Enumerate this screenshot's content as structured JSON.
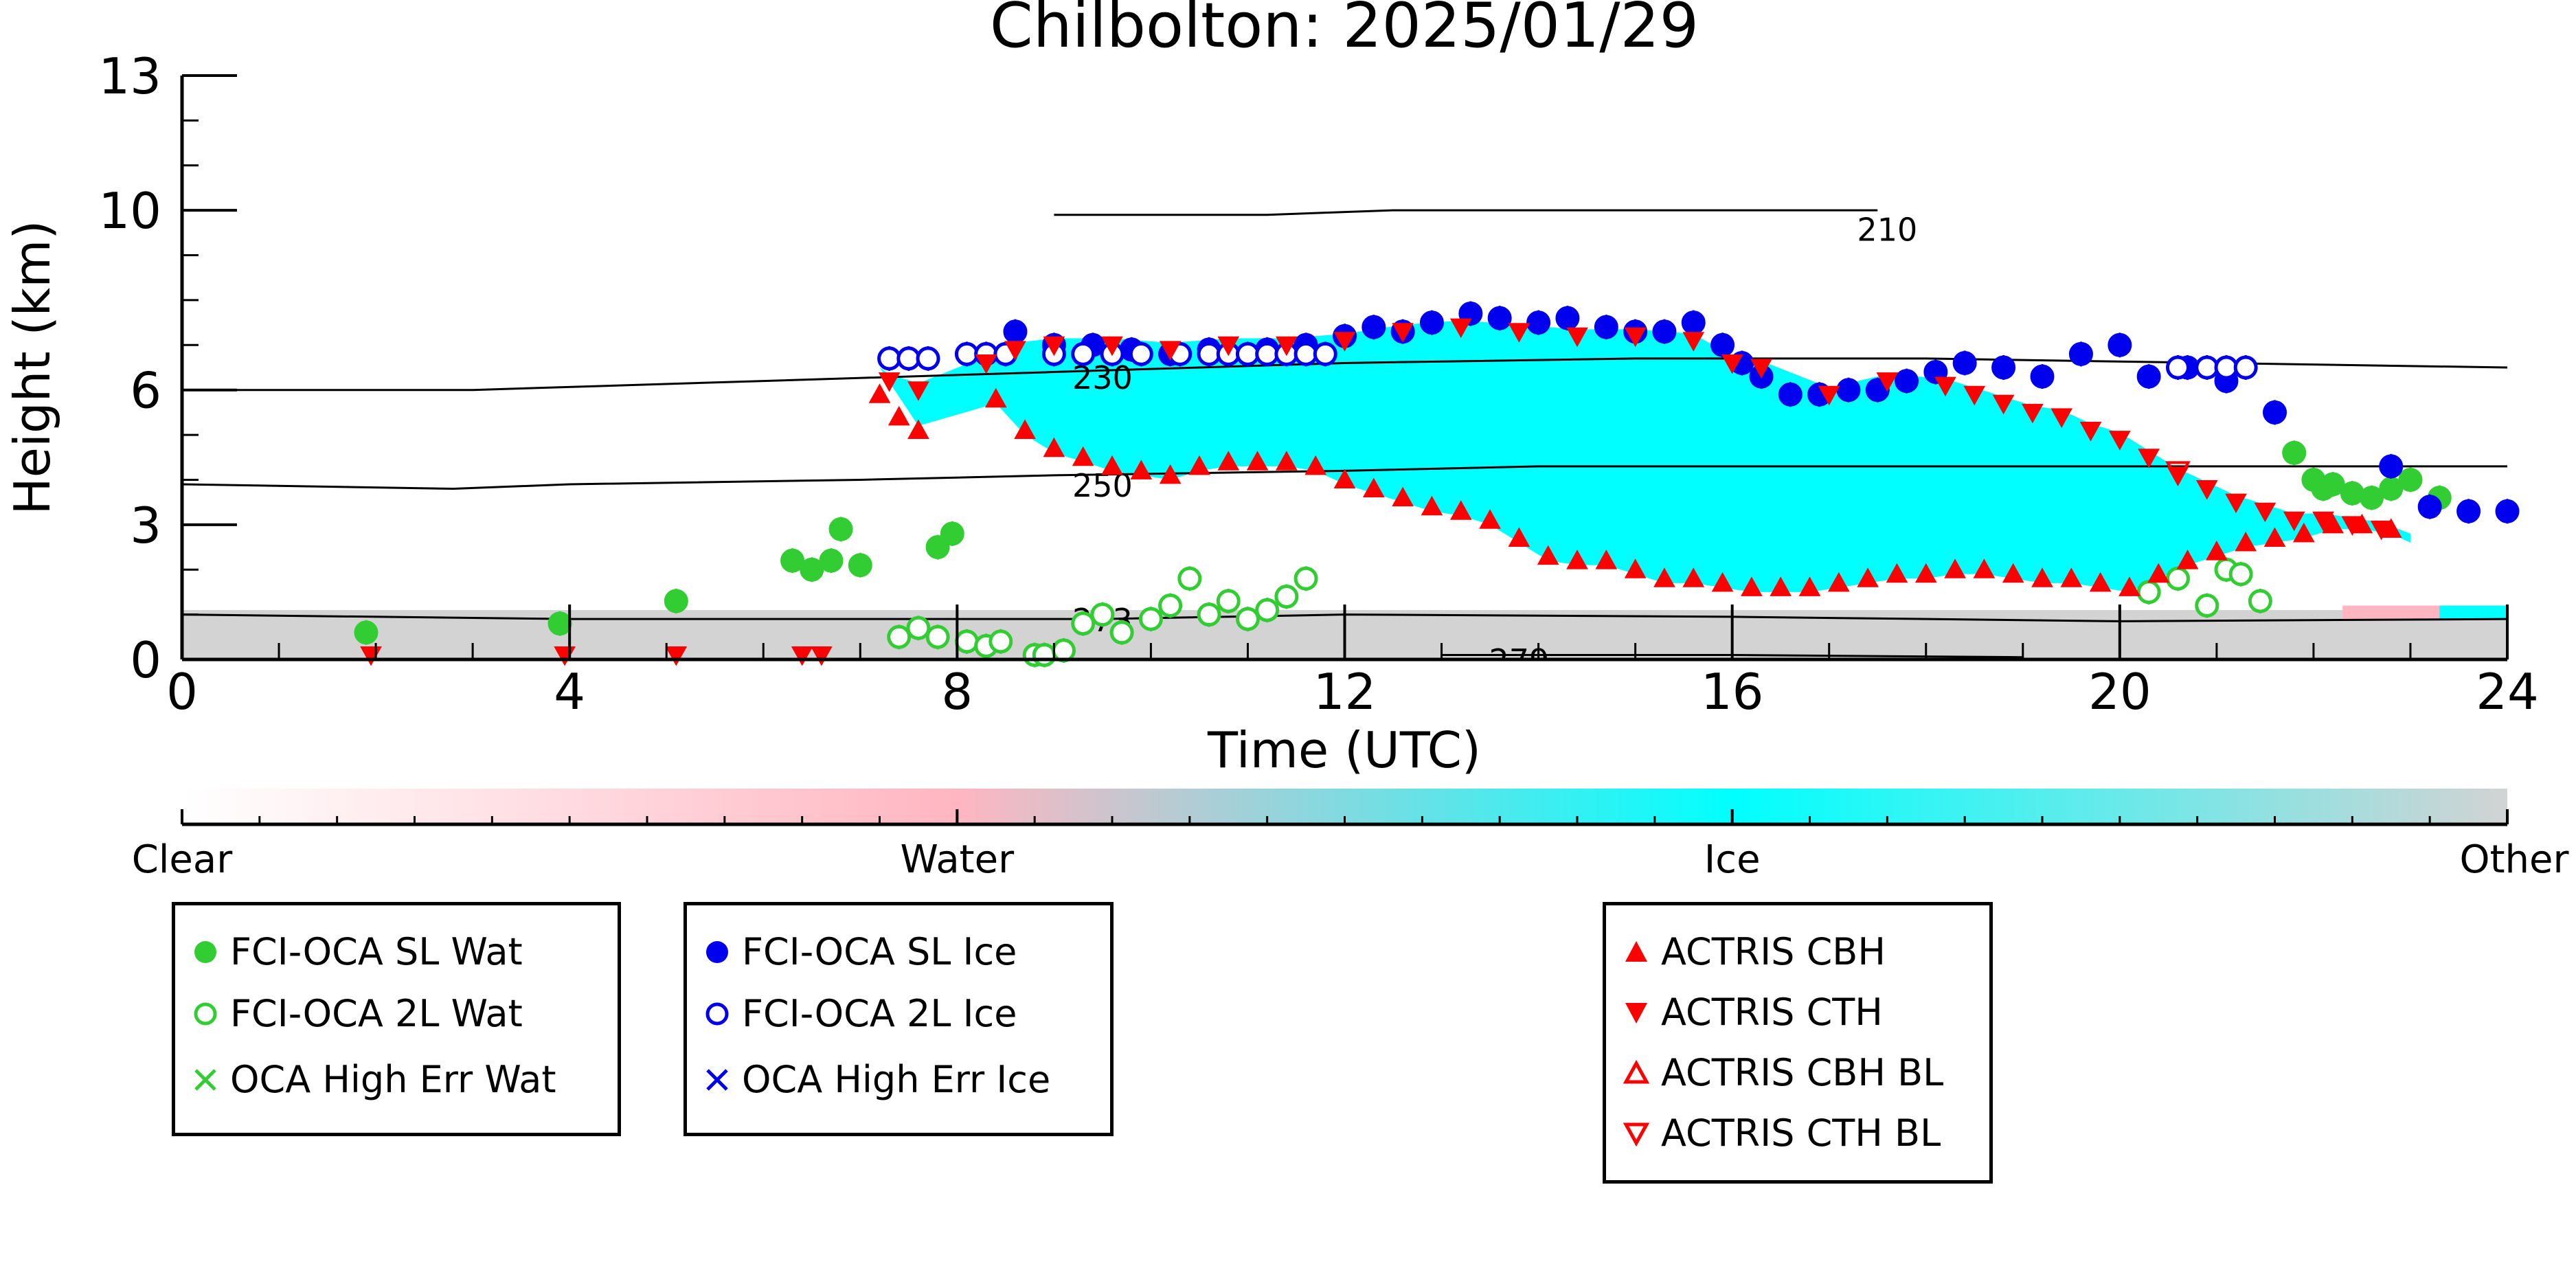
{
  "chart_data": {
    "type": "scatter",
    "title": "Chilbolton: 2025/01/29",
    "xlabel": "Time (UTC)",
    "ylabel": "Height (km)",
    "xlim": [
      0,
      24
    ],
    "ylim": [
      0,
      13
    ],
    "xticks": [
      0,
      4,
      8,
      12,
      16,
      20,
      24
    ],
    "yticks": [
      0,
      3,
      6,
      10,
      13
    ],
    "colors": {
      "water": "#32cd32",
      "ice": "#0000ee",
      "actris": "#ff0000",
      "ice_cloud": "#00ffff",
      "other": "#d3d3d3"
    },
    "temperature_contours": [
      {
        "label": "210",
        "points": [
          [
            9.0,
            9.9
          ],
          [
            10.6,
            9.9
          ],
          [
            11.2,
            9.9
          ],
          [
            12.5,
            10.0
          ],
          [
            14,
            10.0
          ],
          [
            16,
            10.0
          ],
          [
            17.5,
            10.0
          ]
        ]
      },
      {
        "label": "230",
        "points": [
          [
            0,
            6.0
          ],
          [
            3,
            6.0
          ],
          [
            6,
            6.2
          ],
          [
            9,
            6.4
          ],
          [
            12,
            6.6
          ],
          [
            15,
            6.7
          ],
          [
            18,
            6.7
          ],
          [
            21,
            6.6
          ],
          [
            24,
            6.5
          ]
        ]
      },
      {
        "label": "250",
        "points": [
          [
            0,
            3.9
          ],
          [
            2.8,
            3.8
          ],
          [
            4,
            3.9
          ],
          [
            7,
            4.0
          ],
          [
            9,
            4.1
          ],
          [
            12,
            4.2
          ],
          [
            14,
            4.3
          ],
          [
            18,
            4.3
          ],
          [
            24,
            4.3
          ]
        ]
      },
      {
        "label": "273",
        "points": [
          [
            0,
            1.0
          ],
          [
            4,
            0.9
          ],
          [
            8,
            0.9
          ],
          [
            9.5,
            0.9
          ],
          [
            12,
            1.0
          ],
          [
            16,
            0.95
          ],
          [
            20,
            0.85
          ],
          [
            24,
            0.9
          ]
        ]
      },
      {
        "label": "279",
        "points": [
          [
            13.0,
            0.1
          ],
          [
            16,
            0.1
          ],
          [
            19,
            0.05
          ]
        ]
      }
    ],
    "series": [
      {
        "name": "FCI-OCA SL Wat",
        "marker": "filled-circle",
        "color": "#32cd32",
        "x": [
          1.9,
          3.9,
          5.1,
          6.3,
          6.5,
          6.7,
          6.8,
          7.0,
          7.8,
          7.95,
          21.8,
          22.0,
          22.1,
          22.2,
          22.4,
          22.6,
          22.8,
          23.0,
          23.3
        ],
        "y": [
          0.6,
          0.8,
          1.3,
          2.2,
          2.0,
          2.2,
          2.9,
          2.1,
          2.5,
          2.8,
          4.6,
          4.0,
          3.8,
          3.9,
          3.7,
          3.6,
          3.8,
          4.0,
          3.6
        ]
      },
      {
        "name": "FCI-OCA 2L Wat",
        "marker": "open-circle",
        "color": "#32cd32",
        "x": [
          7.4,
          7.6,
          7.8,
          8.1,
          8.3,
          8.45,
          8.8,
          8.9,
          9.1,
          9.3,
          9.5,
          9.7,
          10.0,
          10.2,
          10.4,
          10.6,
          10.8,
          11.0,
          11.2,
          11.4,
          11.6,
          20.3,
          20.6,
          20.9,
          21.1,
          21.25,
          21.45
        ],
        "y": [
          0.5,
          0.7,
          0.5,
          0.4,
          0.3,
          0.4,
          0.1,
          0.1,
          0.2,
          0.8,
          1.0,
          0.6,
          0.9,
          1.2,
          1.8,
          1.0,
          1.3,
          0.9,
          1.1,
          1.4,
          1.8,
          1.5,
          1.8,
          1.2,
          2.0,
          1.9,
          1.3
        ]
      },
      {
        "name": "OCA High Err Wat",
        "marker": "x",
        "color": "#32cd32",
        "x": [],
        "y": []
      },
      {
        "name": "FCI-OCA SL Ice",
        "marker": "filled-circle",
        "color": "#0000ee",
        "x": [
          8.6,
          9.0,
          9.4,
          9.8,
          10.2,
          10.6,
          11.2,
          11.6,
          12.0,
          12.3,
          12.6,
          12.9,
          13.3,
          13.6,
          14.0,
          14.3,
          14.7,
          15.0,
          15.3,
          15.6,
          15.9,
          16.1,
          16.3,
          16.6,
          16.9,
          17.2,
          17.5,
          17.8,
          18.1,
          18.4,
          18.8,
          19.2,
          19.6,
          20.0,
          20.3,
          20.7,
          21.1,
          21.6,
          22.8,
          23.2,
          23.6,
          24.0
        ],
        "y": [
          7.3,
          7.0,
          7.0,
          6.9,
          6.8,
          6.9,
          6.9,
          7.0,
          7.2,
          7.4,
          7.3,
          7.5,
          7.7,
          7.6,
          7.5,
          7.6,
          7.4,
          7.3,
          7.3,
          7.5,
          7.0,
          6.6,
          6.3,
          5.9,
          5.9,
          6.0,
          6.0,
          6.2,
          6.4,
          6.6,
          6.5,
          6.3,
          6.8,
          7.0,
          6.3,
          6.5,
          6.2,
          5.5,
          4.3,
          3.4,
          3.3,
          3.3
        ]
      },
      {
        "name": "FCI-OCA 2L Ice",
        "marker": "open-circle",
        "color": "#0000ee",
        "x": [
          7.3,
          7.5,
          7.7,
          8.1,
          8.3,
          8.5,
          9.0,
          9.3,
          9.6,
          9.9,
          10.3,
          10.6,
          10.8,
          11.0,
          11.2,
          11.4,
          11.6,
          11.8,
          20.6,
          20.9,
          21.1,
          21.3
        ],
        "y": [
          6.7,
          6.7,
          6.7,
          6.8,
          6.8,
          6.8,
          6.8,
          6.8,
          6.8,
          6.8,
          6.8,
          6.8,
          6.8,
          6.8,
          6.8,
          6.8,
          6.8,
          6.8,
          6.5,
          6.5,
          6.5,
          6.5
        ]
      },
      {
        "name": "OCA High Err Ice",
        "marker": "x",
        "color": "#0000ee",
        "x": [],
        "y": []
      },
      {
        "name": "ACTRIS CBH",
        "marker": "triangle-up",
        "color": "#ff0000",
        "x": [
          7.2,
          7.4,
          7.6,
          8.4,
          8.7,
          9.0,
          9.3,
          9.6,
          9.9,
          10.2,
          10.5,
          10.8,
          11.1,
          11.4,
          11.7,
          12.0,
          12.3,
          12.6,
          12.9,
          13.2,
          13.5,
          13.8,
          14.1,
          14.4,
          14.7,
          15.0,
          15.3,
          15.6,
          15.9,
          16.2,
          16.5,
          16.8,
          17.1,
          17.4,
          17.7,
          18.0,
          18.3,
          18.6,
          18.9,
          19.2,
          19.5,
          19.8,
          20.1,
          20.4,
          20.7,
          21.0,
          21.3,
          21.6,
          21.9,
          22.2,
          22.5,
          22.8
        ],
        "y": [
          5.9,
          5.4,
          5.1,
          5.8,
          5.1,
          4.7,
          4.5,
          4.3,
          4.2,
          4.1,
          4.3,
          4.4,
          4.4,
          4.4,
          4.3,
          4.0,
          3.8,
          3.6,
          3.4,
          3.3,
          3.1,
          2.7,
          2.3,
          2.2,
          2.2,
          2.0,
          1.8,
          1.8,
          1.7,
          1.6,
          1.6,
          1.6,
          1.7,
          1.8,
          1.9,
          1.9,
          2.0,
          2.0,
          1.9,
          1.8,
          1.8,
          1.7,
          1.6,
          1.9,
          2.2,
          2.4,
          2.6,
          2.7,
          2.8,
          3.0,
          3.0,
          2.9
        ]
      },
      {
        "name": "ACTRIS CTH",
        "marker": "triangle-down",
        "color": "#ff0000",
        "x": [
          1.95,
          3.95,
          5.1,
          6.4,
          6.6,
          7.3,
          7.6,
          8.3,
          8.6,
          9.0,
          9.6,
          10.2,
          10.8,
          11.4,
          12.0,
          12.6,
          13.2,
          13.8,
          14.4,
          15.0,
          15.6,
          16.0,
          16.3,
          17.0,
          17.6,
          18.2,
          18.5,
          18.8,
          19.1,
          19.4,
          19.7,
          20.0,
          20.3,
          20.6,
          20.9,
          21.2,
          21.5,
          21.8,
          22.1,
          22.4,
          22.7
        ],
        "y": [
          0.1,
          0.1,
          0.1,
          0.1,
          0.1,
          6.2,
          6.0,
          6.6,
          6.9,
          7.0,
          7.0,
          6.9,
          7.0,
          7.0,
          7.1,
          7.3,
          7.4,
          7.3,
          7.2,
          7.2,
          7.1,
          6.6,
          6.5,
          5.9,
          6.2,
          6.1,
          5.9,
          5.7,
          5.5,
          5.4,
          5.1,
          4.9,
          4.5,
          4.1,
          3.8,
          3.5,
          3.3,
          3.1,
          3.1,
          3.0,
          2.9
        ]
      },
      {
        "name": "ACTRIS CBH BL",
        "marker": "open-triangle-up",
        "color": "#ff0000",
        "x": [],
        "y": []
      },
      {
        "name": "ACTRIS CTH BL",
        "marker": "open-triangle-down",
        "color": "#ff0000",
        "x": [
          20.6
        ],
        "y": [
          4.2
        ]
      }
    ],
    "colorbar": {
      "ticklabels": [
        "Clear",
        "Water",
        "Ice",
        "Other"
      ],
      "colors": [
        "#ffffff",
        "#ffb6c1",
        "#00ffff",
        "#d3d3d3"
      ]
    }
  }
}
